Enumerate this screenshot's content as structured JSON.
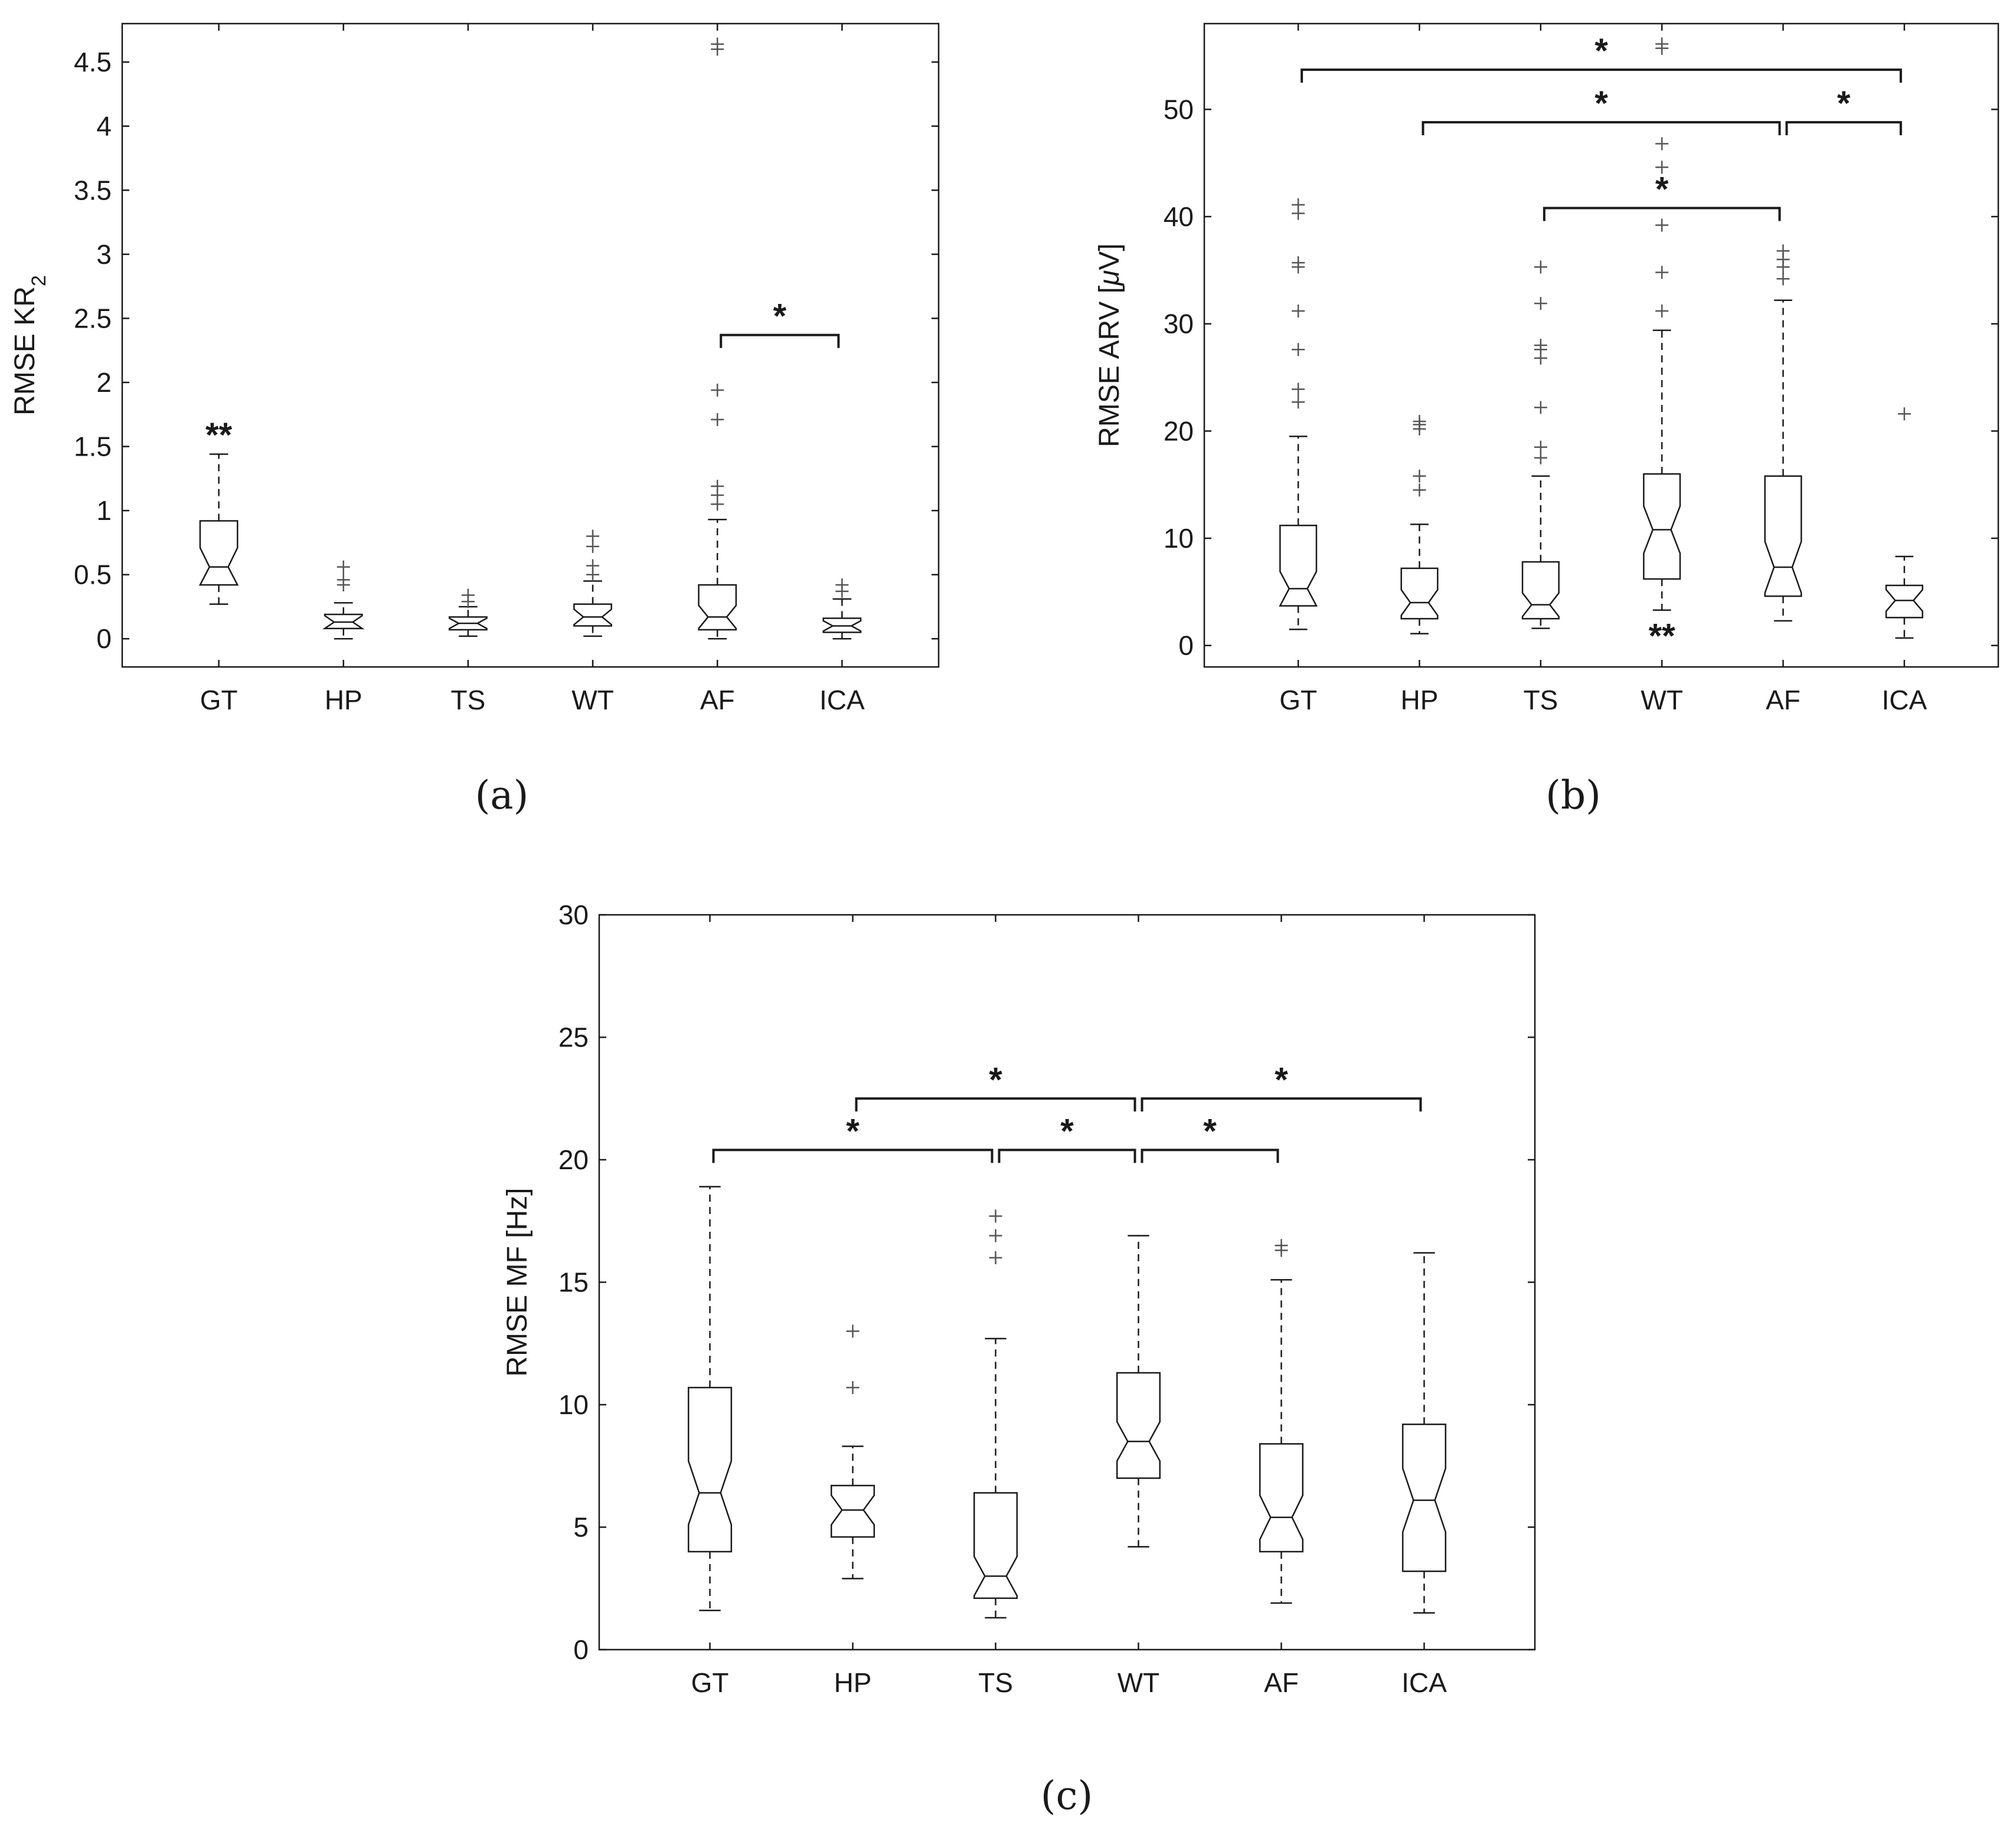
{
  "chart_data": [
    {
      "type": "boxplot",
      "notched": true,
      "caption": "(a)",
      "ylabel": "RMSE KR",
      "ylabel_subscript": "2",
      "categories": [
        "GT",
        "HP",
        "TS",
        "WT",
        "AF",
        "ICA"
      ],
      "ylim": [
        -0.22,
        4.8
      ],
      "yticks": [
        0,
        0.5,
        1,
        1.5,
        2,
        2.5,
        3,
        3.5,
        4,
        4.5
      ],
      "ytick_labels": [
        "0",
        "0.5",
        "1",
        "1.5",
        "2",
        "2.5",
        "3",
        "3.5",
        "4",
        "4.5"
      ],
      "grid": false,
      "boxes": [
        {
          "category": "GT",
          "min": 0.27,
          "q1": 0.42,
          "median": 0.56,
          "q3": 0.92,
          "max": 1.44,
          "notch": 0.15,
          "outliers": []
        },
        {
          "category": "HP",
          "min": 0.0,
          "q1": 0.08,
          "median": 0.13,
          "q3": 0.19,
          "max": 0.28,
          "notch": 0.05,
          "outliers": [
            0.42,
            0.46,
            0.56
          ]
        },
        {
          "category": "TS",
          "min": 0.02,
          "q1": 0.07,
          "median": 0.12,
          "q3": 0.17,
          "max": 0.25,
          "notch": 0.04,
          "outliers": [
            0.29,
            0.34
          ]
        },
        {
          "category": "WT",
          "min": 0.02,
          "q1": 0.1,
          "median": 0.17,
          "q3": 0.27,
          "max": 0.45,
          "notch": 0.06,
          "outliers": [
            0.5,
            0.57,
            0.72,
            0.8
          ]
        },
        {
          "category": "AF",
          "min": 0.0,
          "q1": 0.07,
          "median": 0.17,
          "q3": 0.42,
          "max": 0.93,
          "notch": 0.09,
          "outliers": [
            1.05,
            1.12,
            1.19,
            1.71,
            1.94,
            4.6,
            4.64
          ]
        },
        {
          "category": "ICA",
          "min": 0.0,
          "q1": 0.05,
          "median": 0.1,
          "q3": 0.16,
          "max": 0.31,
          "notch": 0.04,
          "outliers": [
            0.37,
            0.42
          ]
        }
      ],
      "significance_markers": [
        {
          "category": "GT",
          "value": 1.6,
          "text": "**"
        }
      ],
      "significance_brackets": [
        {
          "from": "AF",
          "to": "ICA",
          "value": 2.37,
          "text": "*"
        }
      ]
    },
    {
      "type": "boxplot",
      "notched": true,
      "caption": "(b)",
      "ylabel": "RMSE ARV [",
      "ylabel_symbol": "μ",
      "ylabel_suffix": "V]",
      "categories": [
        "GT",
        "HP",
        "TS",
        "WT",
        "AF",
        "ICA"
      ],
      "ylim": [
        -2,
        58
      ],
      "yticks": [
        0,
        10,
        20,
        30,
        40,
        50
      ],
      "ytick_labels": [
        "0",
        "10",
        "20",
        "30",
        "40",
        "50"
      ],
      "grid": false,
      "boxes": [
        {
          "category": "GT",
          "min": 1.5,
          "q1": 3.7,
          "median": 5.3,
          "q3": 11.2,
          "max": 19.5,
          "notch": 1.6,
          "outliers": [
            22.7,
            23.9,
            27.6,
            31.2,
            35.3,
            35.7,
            40.3,
            41.1
          ]
        },
        {
          "category": "HP",
          "min": 1.1,
          "q1": 2.5,
          "median": 4.0,
          "q3": 7.2,
          "max": 11.3,
          "notch": 1.2,
          "outliers": [
            14.5,
            15.8,
            20.2,
            20.6,
            20.9
          ]
        },
        {
          "category": "TS",
          "min": 1.6,
          "q1": 2.5,
          "median": 3.8,
          "q3": 7.8,
          "max": 15.8,
          "notch": 1.1,
          "outliers": [
            17.5,
            18.5,
            22.2,
            26.8,
            27.6,
            28.0,
            31.9,
            35.3
          ]
        },
        {
          "category": "WT",
          "min": 3.3,
          "q1": 6.2,
          "median": 10.8,
          "q3": 16.0,
          "max": 29.4,
          "notch": 2.2,
          "outliers": [
            31.2,
            34.8,
            39.2,
            44.6,
            46.8,
            55.7,
            56.1
          ]
        },
        {
          "category": "AF",
          "min": 2.3,
          "q1": 4.6,
          "median": 7.3,
          "q3": 15.8,
          "max": 32.2,
          "notch": 2.4,
          "outliers": [
            34.2,
            35.3,
            36.0,
            36.8
          ]
        },
        {
          "category": "ICA",
          "min": 0.7,
          "q1": 2.6,
          "median": 4.2,
          "q3": 5.6,
          "max": 8.3,
          "notch": 1.0,
          "outliers": [
            21.6
          ]
        }
      ],
      "significance_markers": [
        {
          "category": "WT",
          "value": 1.0,
          "text": "**"
        }
      ],
      "significance_brackets": [
        {
          "from": "GT",
          "to": "ICA",
          "value": 53.7,
          "text": "*"
        },
        {
          "from": "HP",
          "to": "AF",
          "value": 48.8,
          "text": "*"
        },
        {
          "from": "AF",
          "to": "ICA",
          "value": 48.8,
          "text": "*"
        },
        {
          "from": "TS",
          "to": "AF",
          "value": 40.8,
          "text": "*"
        }
      ]
    },
    {
      "type": "boxplot",
      "notched": true,
      "caption": "(c)",
      "ylabel": "RMSE MF [Hz]",
      "categories": [
        "GT",
        "HP",
        "TS",
        "WT",
        "AF",
        "ICA"
      ],
      "ylim": [
        0,
        30
      ],
      "yticks": [
        0,
        5,
        10,
        15,
        20,
        25,
        30
      ],
      "ytick_labels": [
        "0",
        "5",
        "10",
        "15",
        "20",
        "25",
        "30"
      ],
      "grid": false,
      "boxes": [
        {
          "category": "GT",
          "min": 1.6,
          "q1": 4.0,
          "median": 6.4,
          "q3": 10.7,
          "max": 18.9,
          "notch": 1.3,
          "outliers": []
        },
        {
          "category": "HP",
          "min": 2.9,
          "q1": 4.6,
          "median": 5.7,
          "q3": 6.7,
          "max": 8.3,
          "notch": 0.6,
          "outliers": [
            10.7,
            13.0
          ]
        },
        {
          "category": "TS",
          "min": 1.3,
          "q1": 2.1,
          "median": 3.0,
          "q3": 6.4,
          "max": 12.7,
          "notch": 0.8,
          "outliers": [
            16.0,
            16.9,
            17.7
          ]
        },
        {
          "category": "WT",
          "min": 4.2,
          "q1": 7.0,
          "median": 8.5,
          "q3": 11.3,
          "max": 16.9,
          "notch": 0.8,
          "outliers": []
        },
        {
          "category": "AF",
          "min": 1.9,
          "q1": 4.0,
          "median": 5.4,
          "q3": 8.4,
          "max": 15.1,
          "notch": 0.9,
          "outliers": [
            16.3,
            16.5
          ]
        },
        {
          "category": "ICA",
          "min": 1.5,
          "q1": 3.2,
          "median": 6.1,
          "q3": 9.2,
          "max": 16.2,
          "notch": 1.3,
          "outliers": []
        }
      ],
      "significance_markers": [],
      "significance_brackets": [
        {
          "from": "HP",
          "to": "WT",
          "value": 22.5,
          "text": "*"
        },
        {
          "from": "WT",
          "to": "ICA",
          "value": 22.5,
          "text": "*"
        },
        {
          "from": "GT",
          "to": "TS",
          "value": 20.4,
          "text": "*"
        },
        {
          "from": "TS",
          "to": "WT",
          "value": 20.4,
          "text": "*"
        },
        {
          "from": "WT",
          "to": "AF",
          "value": 20.4,
          "text": "*"
        }
      ]
    }
  ]
}
